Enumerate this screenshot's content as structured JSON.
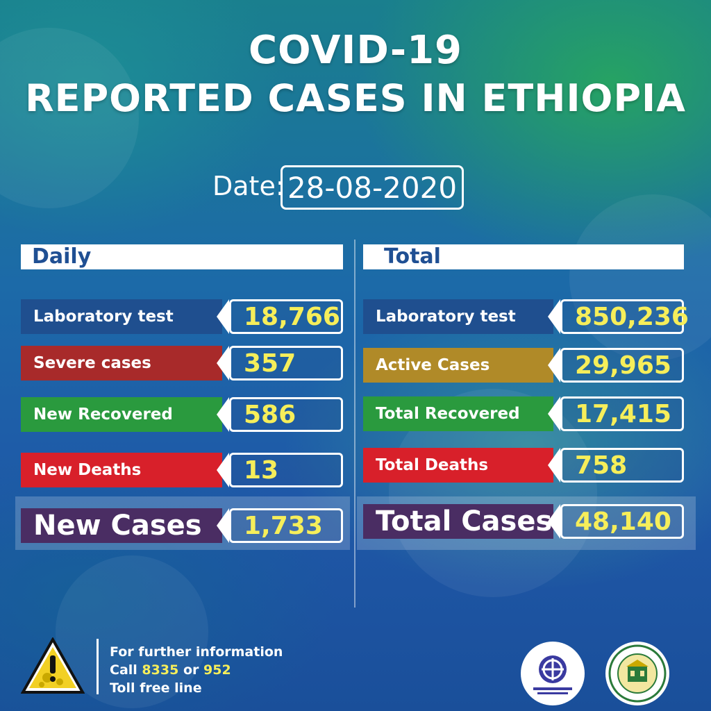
{
  "title": {
    "line1": "COVID-19",
    "line2": "REPORTED CASES IN ETHIOPIA"
  },
  "date": {
    "label": "Date:",
    "value": "28-08-2020"
  },
  "daily": {
    "heading": "Daily",
    "rows": [
      {
        "label": "Laboratory test",
        "value": "18,766",
        "color": "#1f4f8f"
      },
      {
        "label": "Severe cases",
        "value": "357",
        "color": "#a82a2a"
      },
      {
        "label": "New Recovered",
        "value": "586",
        "color": "#2a9a3e"
      },
      {
        "label": "New Deaths",
        "value": "13",
        "color": "#d8202a"
      }
    ],
    "summary": {
      "label": "New Cases",
      "value": "1,733",
      "color": "#4a2d63"
    }
  },
  "total": {
    "heading": "Total",
    "rows": [
      {
        "label": "Laboratory test",
        "value": "850,236",
        "color": "#1f4f8f"
      },
      {
        "label": "Active Cases",
        "value": "29,965",
        "color": "#b08a28"
      },
      {
        "label": "Total Recovered",
        "value": "17,415",
        "color": "#2a9a3e"
      },
      {
        "label": "Total Deaths",
        "value": "758",
        "color": "#d8202a"
      }
    ],
    "summary": {
      "label": "Total Cases",
      "value": "48,140",
      "color": "#4a2d63"
    }
  },
  "footer": {
    "line1": "For further information",
    "call_prefix": "Call",
    "number1": "8335",
    "or": "or",
    "number2": "952",
    "line3": "Toll free line"
  },
  "icons": {
    "warning": "warning-virus-icon",
    "moh_logo": "ministry-of-health-logo",
    "ephi_logo": "ethiopian-public-health-institute-logo"
  }
}
